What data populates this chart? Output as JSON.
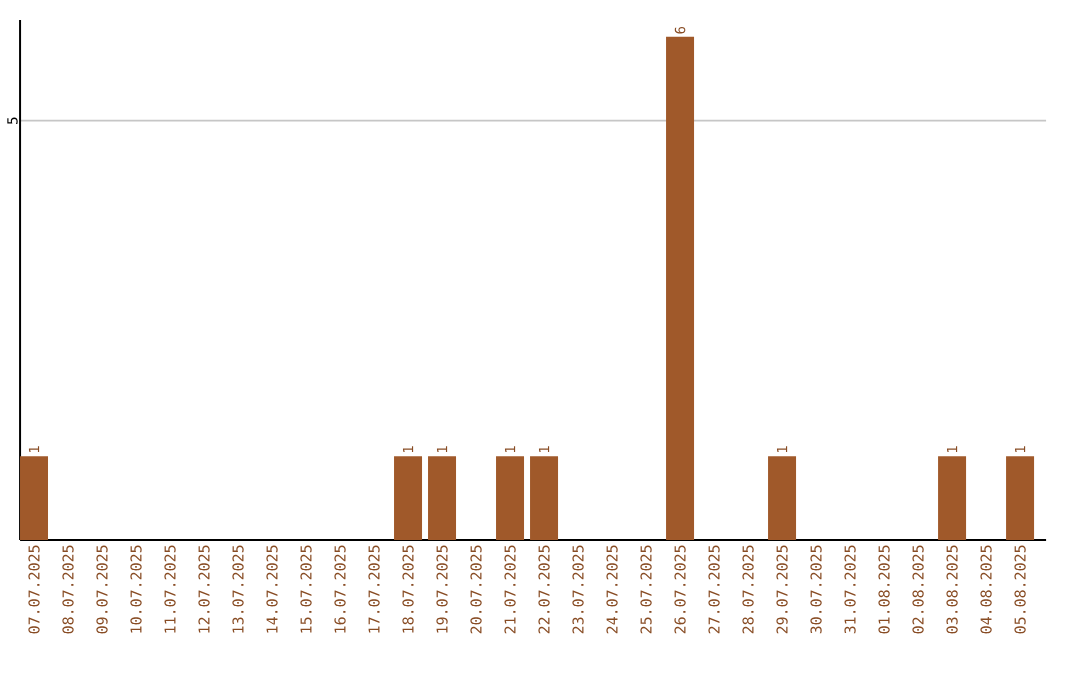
{
  "chart_data": {
    "type": "bar",
    "categories": [
      "07.07.2025",
      "08.07.2025",
      "09.07.2025",
      "10.07.2025",
      "11.07.2025",
      "12.07.2025",
      "13.07.2025",
      "14.07.2025",
      "15.07.2025",
      "16.07.2025",
      "17.07.2025",
      "18.07.2025",
      "19.07.2025",
      "20.07.2025",
      "21.07.2025",
      "22.07.2025",
      "23.07.2025",
      "24.07.2025",
      "25.07.2025",
      "26.07.2025",
      "27.07.2025",
      "28.07.2025",
      "29.07.2025",
      "30.07.2025",
      "31.07.2025",
      "01.08.2025",
      "02.08.2025",
      "03.08.2025",
      "04.08.2025",
      "05.08.2025"
    ],
    "values": [
      1,
      0,
      0,
      0,
      0,
      0,
      0,
      0,
      0,
      0,
      0,
      1,
      1,
      0,
      1,
      1,
      0,
      0,
      0,
      6,
      0,
      0,
      1,
      0,
      0,
      0,
      0,
      1,
      0,
      1
    ],
    "value_labels": [
      "1",
      null,
      null,
      null,
      null,
      null,
      null,
      null,
      null,
      null,
      null,
      "1",
      "1",
      null,
      "1",
      "1",
      null,
      null,
      null,
      "6",
      null,
      null,
      "1",
      null,
      null,
      null,
      null,
      "1",
      null,
      "1"
    ],
    "color": "#a0592a",
    "ylim": [
      0,
      6.2
    ],
    "yticks": [
      5
    ],
    "grid": "y"
  }
}
